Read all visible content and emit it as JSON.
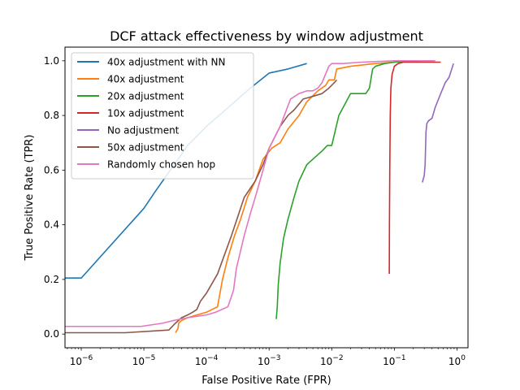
{
  "chart_data": {
    "type": "line",
    "title": "DCF attack effectiveness by window adjustment",
    "xlabel": "False Positive Rate (FPR)",
    "ylabel": "True Positive Rate (TPR)",
    "xscale": "log",
    "xlim": [
      5.5e-07,
      1.5
    ],
    "ylim": [
      -0.05,
      1.05
    ],
    "x_ticks": [
      {
        "value": 1e-06,
        "base": "10",
        "exp": "−6"
      },
      {
        "value": 1e-05,
        "base": "10",
        "exp": "−5"
      },
      {
        "value": 0.0001,
        "base": "10",
        "exp": "−4"
      },
      {
        "value": 0.001,
        "base": "10",
        "exp": "−3"
      },
      {
        "value": 0.01,
        "base": "10",
        "exp": "−2"
      },
      {
        "value": 0.1,
        "base": "10",
        "exp": "−1"
      },
      {
        "value": 1,
        "base": "10",
        "exp": "0"
      }
    ],
    "y_ticks": [
      {
        "value": 0.0,
        "label": "0.0"
      },
      {
        "value": 0.2,
        "label": "0.2"
      },
      {
        "value": 0.4,
        "label": "0.4"
      },
      {
        "value": 0.6,
        "label": "0.6"
      },
      {
        "value": 0.8,
        "label": "0.8"
      },
      {
        "value": 1.0,
        "label": "1.0"
      }
    ],
    "grid": false,
    "legend_position": "top-left",
    "series": [
      {
        "name": "40x adjustment with NN",
        "color": "#1f77b4",
        "x": [
          5e-07,
          1e-06,
          1e-05,
          1.5e-05,
          5e-05,
          0.0001,
          0.0002,
          0.0005,
          0.001,
          0.002,
          0.004
        ],
        "y": [
          0.205,
          0.205,
          0.46,
          0.52,
          0.69,
          0.76,
          0.82,
          0.9,
          0.955,
          0.97,
          0.99
        ]
      },
      {
        "name": "40x adjustment",
        "color": "#ff7f0e",
        "x": [
          3.2e-05,
          3.5e-05,
          3.6e-05,
          4e-05,
          5e-05,
          7e-05,
          0.0001,
          0.00015,
          0.00018,
          0.00022,
          0.00028,
          0.00035,
          0.00045,
          0.0006,
          0.0008,
          0.0011,
          0.0015,
          0.002,
          0.003,
          0.004,
          0.006,
          0.008,
          0.009,
          0.011,
          0.012,
          0.02,
          0.05,
          0.1,
          0.3,
          0.4
        ],
        "y": [
          0.005,
          0.02,
          0.04,
          0.05,
          0.06,
          0.07,
          0.08,
          0.1,
          0.2,
          0.28,
          0.36,
          0.42,
          0.5,
          0.56,
          0.64,
          0.68,
          0.7,
          0.75,
          0.8,
          0.85,
          0.89,
          0.91,
          0.93,
          0.93,
          0.97,
          0.98,
          0.99,
          0.995,
          1.0,
          1.0
        ]
      },
      {
        "name": "20x adjustment",
        "color": "#2ca02c",
        "x": [
          0.0013,
          0.00135,
          0.0014,
          0.0015,
          0.0017,
          0.002,
          0.0025,
          0.003,
          0.004,
          0.005,
          0.007,
          0.0085,
          0.01,
          0.013,
          0.02,
          0.035,
          0.04,
          0.045,
          0.05,
          0.07,
          0.1,
          0.2,
          0.4
        ],
        "y": [
          0.055,
          0.1,
          0.18,
          0.26,
          0.35,
          0.42,
          0.5,
          0.56,
          0.62,
          0.64,
          0.67,
          0.69,
          0.69,
          0.8,
          0.88,
          0.88,
          0.9,
          0.97,
          0.98,
          0.99,
          0.995,
          1.0,
          1.0
        ]
      },
      {
        "name": "10x adjustment",
        "color": "#d62728",
        "x": [
          0.083,
          0.0835,
          0.0845,
          0.086,
          0.088,
          0.092,
          0.1,
          0.115,
          0.14,
          0.2,
          0.3,
          0.55
        ],
        "y": [
          0.22,
          0.4,
          0.6,
          0.8,
          0.9,
          0.95,
          0.98,
          0.99,
          0.995,
          0.995,
          0.995,
          0.995
        ]
      },
      {
        "name": "No adjustment",
        "color": "#9467bd",
        "x": [
          0.28,
          0.3,
          0.31,
          0.32,
          0.33,
          0.35,
          0.4,
          0.45,
          0.55,
          0.65,
          0.75,
          0.88
        ],
        "y": [
          0.555,
          0.58,
          0.62,
          0.74,
          0.77,
          0.78,
          0.79,
          0.83,
          0.88,
          0.92,
          0.94,
          0.99
        ]
      },
      {
        "name": "50x adjustment",
        "color": "#8c564b",
        "x": [
          5e-07,
          5e-06,
          2.5e-05,
          3.2e-05,
          4e-05,
          5e-05,
          6e-05,
          7e-05,
          8e-05,
          0.0001,
          0.00015,
          0.00025,
          0.0004,
          0.0006,
          0.0008,
          0.001,
          0.0015,
          0.002,
          0.0025,
          0.0035,
          0.005,
          0.007,
          0.009,
          0.011,
          0.012
        ],
        "y": [
          0.005,
          0.005,
          0.015,
          0.04,
          0.06,
          0.07,
          0.08,
          0.09,
          0.12,
          0.15,
          0.22,
          0.36,
          0.5,
          0.56,
          0.62,
          0.68,
          0.76,
          0.8,
          0.82,
          0.86,
          0.87,
          0.88,
          0.9,
          0.92,
          0.93
        ]
      },
      {
        "name": "Randomly chosen hop",
        "color": "#e377c2",
        "x": [
          5e-07,
          9e-06,
          2e-05,
          3e-05,
          5e-05,
          7e-05,
          0.0001,
          0.00014,
          0.00022,
          0.00027,
          0.0003,
          0.00033,
          0.0004,
          0.0005,
          0.0006,
          0.0008,
          0.001,
          0.0015,
          0.0022,
          0.003,
          0.004,
          0.005,
          0.006,
          0.007,
          0.009,
          0.01,
          0.015,
          0.03,
          0.1,
          0.3,
          0.45
        ],
        "y": [
          0.028,
          0.028,
          0.04,
          0.05,
          0.06,
          0.065,
          0.07,
          0.08,
          0.1,
          0.16,
          0.24,
          0.28,
          0.36,
          0.44,
          0.5,
          0.6,
          0.68,
          0.76,
          0.86,
          0.88,
          0.89,
          0.89,
          0.9,
          0.92,
          0.98,
          0.99,
          0.99,
          0.995,
          1.0,
          1.0,
          1.0
        ]
      }
    ]
  }
}
